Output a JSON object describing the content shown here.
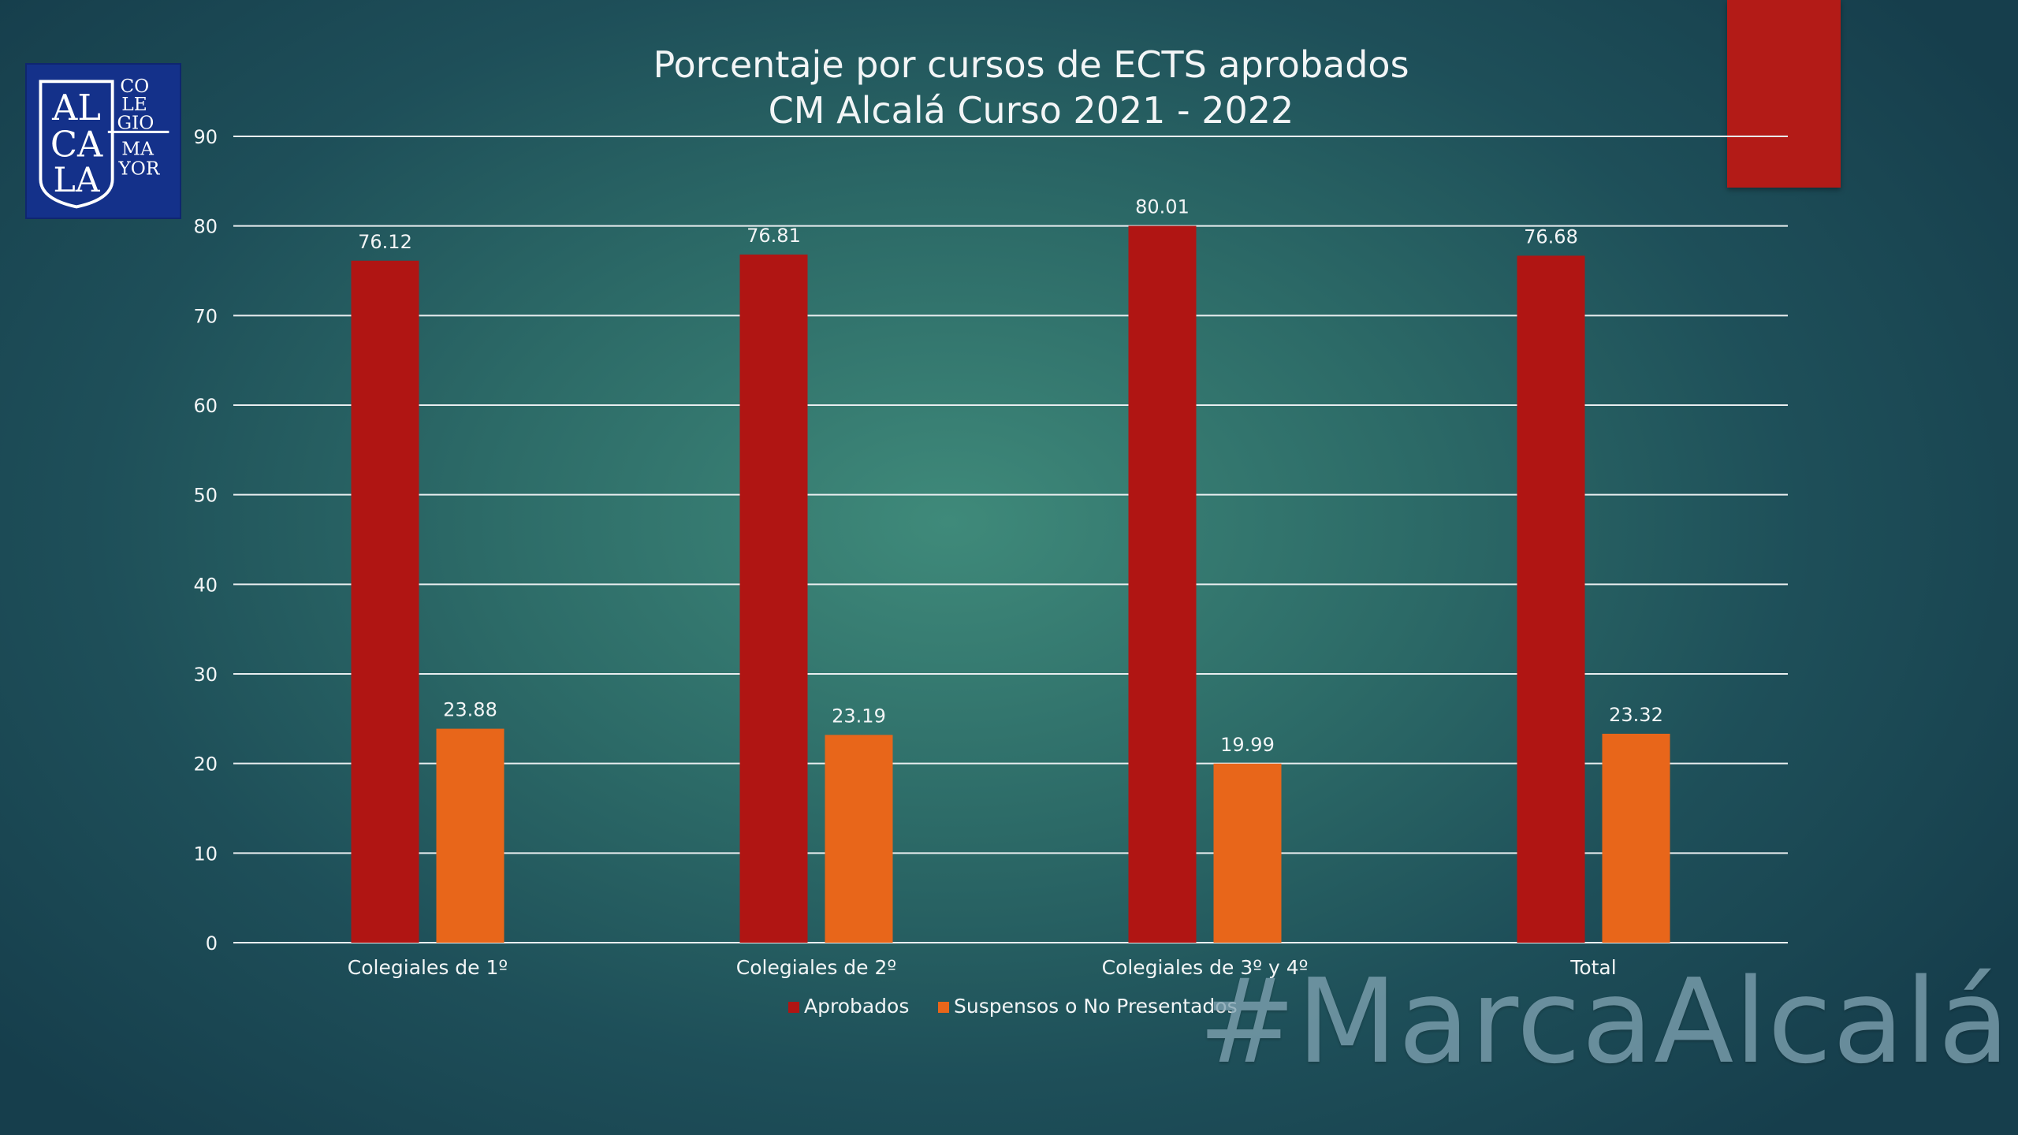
{
  "logo": {
    "letters": [
      "AL",
      "CA",
      "LA"
    ],
    "side": [
      "CO",
      "LE",
      "GIO",
      "MA",
      "YOR"
    ]
  },
  "hashtag": "#MarcaAlcalá",
  "colors": {
    "aprobados": "#b01513",
    "suspensos": "#e8661a",
    "corner_bar": "#b31b17",
    "grid": "#e9eef0",
    "text": "#f2f5f6"
  },
  "chart_data": {
    "type": "bar",
    "title": [
      "Porcentaje por cursos de ECTS aprobados",
      "CM Alcalá Curso 2021 - 2022"
    ],
    "categories": [
      "Colegiales de 1º",
      "Colegiales de 2º",
      "Colegiales de 3º y 4º",
      "Total"
    ],
    "series": [
      {
        "name": "Aprobados",
        "values": [
          76.12,
          76.81,
          80.01,
          76.68
        ],
        "labels": [
          "76.12",
          "76.81",
          "80.01",
          "76.68"
        ]
      },
      {
        "name": "Suspensos o No Presentados",
        "values": [
          23.88,
          23.19,
          19.99,
          23.32
        ],
        "labels": [
          "23.88",
          "23.19",
          "19.99",
          "23.32"
        ]
      }
    ],
    "ylim": [
      0,
      90
    ],
    "yticks": [
      "0",
      "10",
      "20",
      "30",
      "40",
      "50",
      "60",
      "70",
      "80",
      "90"
    ],
    "grid": true,
    "legend": "bottom"
  }
}
